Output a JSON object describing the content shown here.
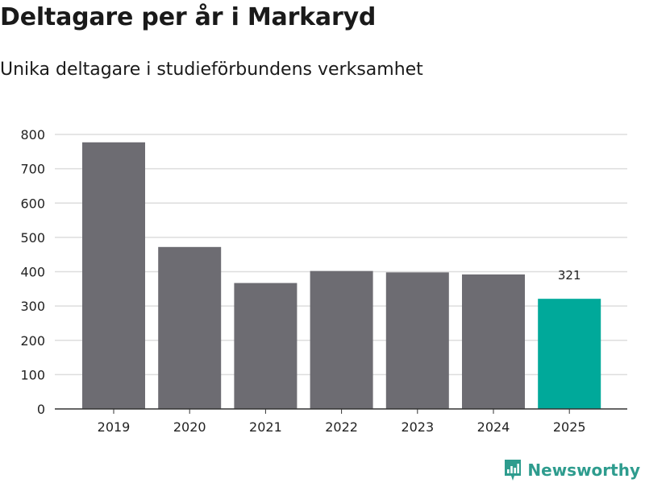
{
  "header": {
    "title": "Deltagare per år i Markaryd",
    "subtitle": "Unika deltagare i studieförbundens verksamhet"
  },
  "brand": {
    "name": "Newsworthy",
    "icon": "newsworthy-logo-icon",
    "color": "#2e9c8e"
  },
  "colors": {
    "bar": "#6d6c72",
    "highlight": "#00a99a",
    "grid": "#dddddd",
    "axis": "#333333"
  },
  "chart_data": {
    "type": "bar",
    "title": "Deltagare per år i Markaryd",
    "subtitle": "Unika deltagare i studieförbundens verksamhet",
    "xlabel": "",
    "ylabel": "",
    "categories": [
      "2019",
      "2020",
      "2021",
      "2022",
      "2023",
      "2024",
      "2025"
    ],
    "values": [
      777,
      472,
      367,
      402,
      398,
      392,
      321
    ],
    "highlight_index": 6,
    "data_labels": [
      null,
      null,
      null,
      null,
      null,
      null,
      "321"
    ],
    "ylim": [
      0,
      800
    ],
    "yticks": [
      0,
      100,
      200,
      300,
      400,
      500,
      600,
      700,
      800
    ],
    "grid": true,
    "legend": "none"
  }
}
